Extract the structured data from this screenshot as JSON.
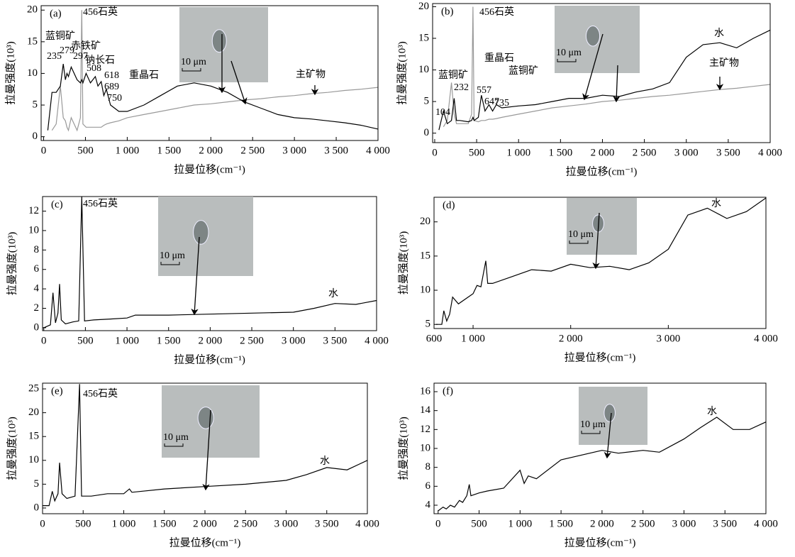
{
  "chart_data": [
    {
      "type": "line",
      "label": "(a)",
      "xlabel": "拉曼位移(cm⁻¹)",
      "ylabel": "拉曼强度(10³)",
      "inset_text": "10 μm",
      "xlim": [
        -30,
        4000
      ],
      "ylim": [
        -0.6,
        20.7
      ],
      "xticks": [
        0,
        500,
        {
          "value": 1000,
          "label": "1 000"
        },
        {
          "value": 1500,
          "label": "1 500"
        },
        {
          "value": 2000,
          "label": "2 000"
        },
        {
          "value": 2500,
          "label": "2 500"
        },
        {
          "value": 3000,
          "label": "3 000"
        },
        {
          "value": 3500,
          "label": "3 500"
        },
        {
          "value": 4000,
          "label": "4 000"
        }
      ],
      "yticks": [
        0,
        5,
        10,
        15,
        20
      ],
      "x": [
        50,
        100,
        150,
        200,
        235,
        260,
        279,
        297,
        330,
        400,
        440,
        456,
        470,
        508,
        560,
        618,
        650,
        689,
        720,
        750,
        800,
        900,
        1000,
        1200,
        1400,
        1600,
        1800,
        2000,
        2200,
        2400,
        2600,
        2800,
        3000,
        3200,
        3400,
        3600,
        3800,
        4000
      ],
      "series": [
        {
          "color": "#999999",
          "values": [
            null,
            1,
            2,
            8,
            3,
            2.5,
            1.5,
            1,
            3,
            1,
            3,
            20,
            2,
            1.5,
            1.5,
            1.5,
            1.5,
            1.5,
            1.8,
            2,
            2.2,
            2.5,
            3,
            3.5,
            4,
            4.5,
            5,
            5.2,
            5.5,
            5.8,
            6,
            6.3,
            6.5,
            6.8,
            7,
            7.3,
            7.5,
            7.8
          ]
        },
        {
          "color": "#000000",
          "values": [
            1,
            7,
            7,
            8,
            11.5,
            9,
            10,
            9.5,
            11,
            9,
            8.5,
            9,
            8.5,
            10,
            8.5,
            9.5,
            8,
            8.7,
            6.5,
            7.5,
            5,
            4,
            4,
            5,
            6.5,
            8,
            8.5,
            8,
            7,
            5.5,
            4.5,
            3.5,
            3,
            2.8,
            2.5,
            2.2,
            1.8,
            1.2
          ]
        }
      ],
      "annotations": [
        "456石英",
        "蓝铜矿",
        "235",
        "279",
        "赤铁矿",
        "297",
        "钠长石",
        "508",
        "618",
        "689",
        "750",
        "重晶石",
        "主矿物"
      ]
    },
    {
      "type": "line",
      "label": "(b)",
      "xlabel": "拉曼位移(cm⁻¹)",
      "ylabel": "拉曼强度(10³)",
      "inset_text": "10 μm",
      "xlim": [
        -25,
        4000
      ],
      "ylim": [
        -1.5,
        20.5
      ],
      "xticks": [
        0,
        500,
        {
          "value": 1000,
          "label": "1 000"
        },
        {
          "value": 1500,
          "label": "1 500"
        },
        {
          "value": 2000,
          "label": "2 000"
        },
        {
          "value": 2500,
          "label": "2 500"
        },
        {
          "value": 3000,
          "label": "3 000"
        },
        {
          "value": 3500,
          "label": "3 500"
        },
        {
          "value": 4000,
          "label": "4 000"
        }
      ],
      "yticks": [
        0,
        5,
        10,
        15,
        20
      ],
      "x": [
        50,
        104,
        150,
        200,
        232,
        260,
        300,
        400,
        440,
        456,
        470,
        520,
        557,
        600,
        647,
        690,
        735,
        800,
        1000,
        1200,
        1400,
        1600,
        1800,
        2000,
        2200,
        2400,
        2600,
        2800,
        3000,
        3200,
        3400,
        3600,
        3800,
        4000
      ],
      "series": [
        {
          "color": "#999999",
          "values": [
            null,
            1,
            2,
            8,
            3,
            1.5,
            1.5,
            1.5,
            3,
            20,
            2,
            1.8,
            2,
            2,
            2.2,
            2.2,
            2.3,
            2.5,
            3,
            3.5,
            4,
            4.3,
            4.6,
            5,
            5.2,
            5.5,
            5.8,
            6,
            6.3,
            6.6,
            6.9,
            7.1,
            7.4,
            7.7
          ]
        },
        {
          "color": "#000000",
          "values": [
            0.5,
            3.5,
            1.5,
            2,
            5.5,
            2,
            2,
            1.8,
            2,
            2.5,
            2,
            2.5,
            6,
            3.5,
            4.5,
            3.5,
            4.5,
            4,
            4.3,
            4.5,
            5,
            5.5,
            5.5,
            6,
            5.8,
            6.5,
            7,
            8,
            12,
            14,
            14.3,
            13.5,
            15,
            16.3
          ]
        }
      ],
      "annotations": [
        "456石英",
        "蓝铜矿",
        "104",
        "232",
        "557",
        "647",
        "735",
        "重晶石",
        "蓝铜矿",
        "水",
        "主矿物"
      ]
    },
    {
      "type": "line",
      "label": "(c)",
      "xlabel": "拉曼位移(cm⁻¹)",
      "ylabel": "拉曼强度(10³)",
      "inset_text": "10 μm",
      "xlim": [
        -15,
        4000
      ],
      "ylim": [
        -0.3,
        13.5
      ],
      "xticks": [
        0,
        500,
        {
          "value": 1000,
          "label": "1 000"
        },
        {
          "value": 1500,
          "label": "1 500"
        },
        {
          "value": 2000,
          "label": "2 000"
        },
        {
          "value": 2500,
          "label": "2 500"
        },
        {
          "value": 3000,
          "label": "3 000"
        },
        {
          "value": 3500,
          "label": "3 500"
        },
        {
          "value": 4000,
          "label": "4 000"
        }
      ],
      "yticks": [
        0,
        2,
        4,
        6,
        8,
        10,
        12
      ],
      "x": [
        0,
        80,
        110,
        140,
        170,
        190,
        210,
        260,
        350,
        420,
        456,
        490,
        600,
        800,
        1000,
        1100,
        1500,
        2000,
        2500,
        3000,
        3250,
        3500,
        3750,
        4000
      ],
      "series": [
        {
          "color": "#000000",
          "values": [
            0,
            0.3,
            3.6,
            0.5,
            1.5,
            4.5,
            0.8,
            0.4,
            0.6,
            0.7,
            13.5,
            0.7,
            0.8,
            0.9,
            1.0,
            1.3,
            1.3,
            1.4,
            1.5,
            1.6,
            2.0,
            2.5,
            2.4,
            2.8
          ]
        }
      ],
      "annotations": [
        "456石英",
        "水"
      ]
    },
    {
      "type": "line",
      "label": "(d)",
      "xlabel": "拉曼位移(cm⁻¹)",
      "ylabel": "拉曼强度(10³)",
      "inset_text": "10 μm",
      "xlim": [
        600,
        4000
      ],
      "ylim": [
        4.4,
        23.6
      ],
      "xticks": [
        600,
        {
          "value": 1000,
          "label": "1 000"
        },
        {
          "value": 2000,
          "label": "2 000"
        },
        {
          "value": 3000,
          "label": "3 000"
        },
        {
          "value": 4000,
          "label": "4 000"
        }
      ],
      "yticks": [
        5,
        10,
        15,
        20
      ],
      "x": [
        620,
        680,
        700,
        730,
        760,
        790,
        850,
        1000,
        1040,
        1080,
        1130,
        1150,
        1200,
        1400,
        1600,
        1800,
        2000,
        2200,
        2400,
        2600,
        2800,
        3000,
        3200,
        3400,
        3600,
        3800,
        4000
      ],
      "series": [
        {
          "color": "#000000",
          "values": [
            5,
            5,
            7,
            5.5,
            6.5,
            9,
            8,
            9.5,
            10.7,
            10.5,
            14.3,
            11,
            11,
            12,
            13,
            12.8,
            13.8,
            13.3,
            13.5,
            13,
            14,
            16,
            21,
            22,
            20.5,
            21.5,
            23.5
          ]
        }
      ],
      "annotations": [
        "水"
      ]
    },
    {
      "type": "line",
      "label": "(e)",
      "xlabel": "拉曼位移(cm⁻¹)",
      "ylabel": "拉曼强度(10³)",
      "inset_text": "10 μm",
      "xlim": [
        0,
        4000
      ],
      "ylim": [
        -1.2,
        26.2
      ],
      "xticks": [
        0,
        500,
        {
          "value": 1000,
          "label": "1 000"
        },
        {
          "value": 1500,
          "label": "1 500"
        },
        {
          "value": 2000,
          "label": "2 000"
        },
        {
          "value": 2500,
          "label": "2 500"
        },
        {
          "value": 3000,
          "label": "3 000"
        },
        {
          "value": 3500,
          "label": "3 500"
        },
        {
          "value": 4000,
          "label": "4 000"
        }
      ],
      "yticks": [
        0,
        5,
        10,
        15,
        20,
        25
      ],
      "x": [
        0,
        80,
        120,
        150,
        190,
        210,
        240,
        300,
        400,
        456,
        480,
        600,
        800,
        1000,
        1070,
        1100,
        1500,
        2000,
        2500,
        3000,
        3250,
        3500,
        3750,
        4000
      ],
      "series": [
        {
          "color": "#000000",
          "values": [
            0.5,
            0.5,
            3.5,
            1.5,
            3,
            9.5,
            3,
            2,
            2.5,
            26,
            2.5,
            2.5,
            3,
            3,
            4,
            3.3,
            4,
            4.5,
            5,
            5.8,
            7,
            8.5,
            8,
            10
          ]
        }
      ],
      "annotations": [
        "456石英",
        "水"
      ]
    },
    {
      "type": "line",
      "label": "(f)",
      "xlabel": "拉曼位移(cm⁻¹)",
      "ylabel": "拉曼强度(10³)",
      "inset_text": "10 μm",
      "xlim": [
        -50,
        4000
      ],
      "ylim": [
        3.1,
        16.9
      ],
      "xticks": [
        0,
        500,
        {
          "value": 1000,
          "label": "1 000"
        },
        {
          "value": 1500,
          "label": "1 500"
        },
        {
          "value": 2000,
          "label": "2 000"
        },
        {
          "value": 2500,
          "label": "2 500"
        },
        {
          "value": 3000,
          "label": "3 000"
        },
        {
          "value": 3500,
          "label": "3 500"
        },
        {
          "value": 4000,
          "label": "4 000"
        }
      ],
      "yticks": [
        4,
        6,
        8,
        10,
        12,
        14,
        16
      ],
      "x": [
        0,
        60,
        100,
        150,
        200,
        260,
        300,
        350,
        380,
        400,
        500,
        600,
        800,
        1000,
        1050,
        1100,
        1200,
        1500,
        2000,
        2200,
        2500,
        2700,
        3000,
        3200,
        3400,
        3600,
        3800,
        4000
      ],
      "series": [
        {
          "color": "#000000",
          "values": [
            3.4,
            3.8,
            3.6,
            4,
            3.8,
            4.5,
            4.3,
            5,
            6.2,
            5,
            5.3,
            5.5,
            5.8,
            7.7,
            6.3,
            7.1,
            6.8,
            8.8,
            9.8,
            9.5,
            9.8,
            9.6,
            11,
            12.2,
            13.3,
            12,
            12,
            12.8
          ]
        }
      ],
      "annotations": [
        "水"
      ]
    }
  ]
}
